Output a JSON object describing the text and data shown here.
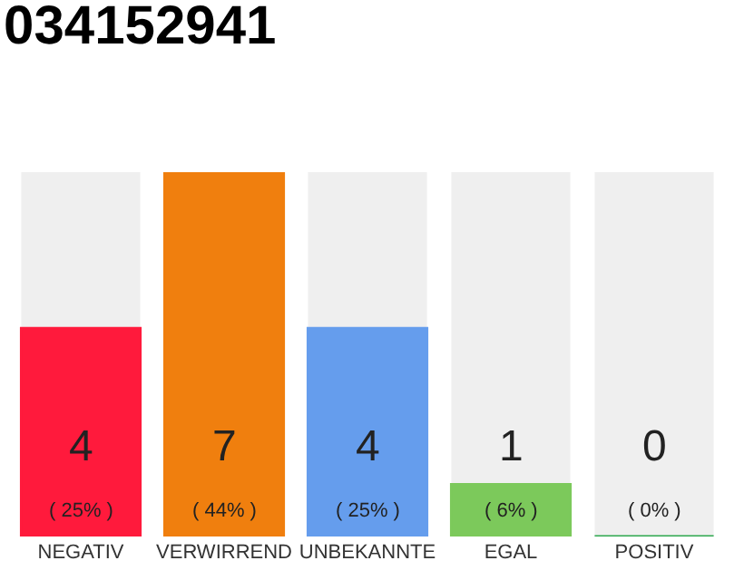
{
  "chart_data": {
    "type": "bar",
    "title": "034152941",
    "categories": [
      "NEGATIV",
      "VERWIRREND",
      "UNBEKANNTE",
      "EGAL",
      "POSITIV"
    ],
    "values": [
      4,
      7,
      4,
      1,
      0
    ],
    "colors": [
      "#ff1a3c",
      "#f07f0e",
      "#659ded",
      "#7cc95b",
      "#2ea84f"
    ],
    "value_labels": [
      "4\n( 25% )",
      "7\n( 44% )",
      "4\n( 25% )",
      "1\n( 6% )",
      "0\n( 0% )"
    ],
    "tick_labels": "x",
    "grid": false,
    "legend": false
  }
}
